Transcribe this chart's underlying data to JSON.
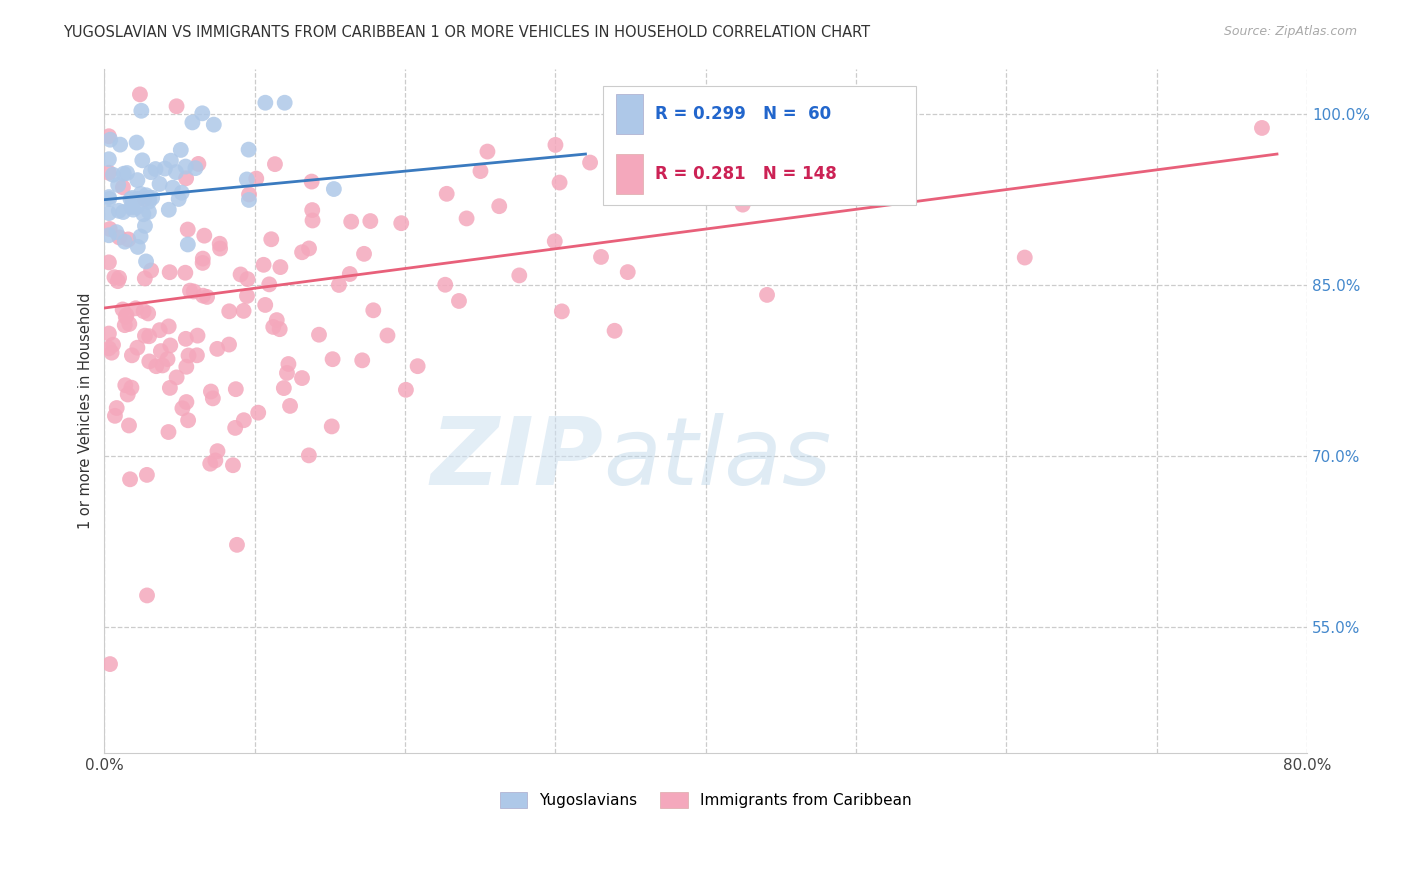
{
  "title": "YUGOSLAVIAN VS IMMIGRANTS FROM CARIBBEAN 1 OR MORE VEHICLES IN HOUSEHOLD CORRELATION CHART",
  "source": "Source: ZipAtlas.com",
  "ylabel": "1 or more Vehicles in Household",
  "xmin": 0.0,
  "xmax": 0.8,
  "ymin": 44.0,
  "ymax": 104.0,
  "blue_R": 0.299,
  "blue_N": 60,
  "pink_R": 0.281,
  "pink_N": 148,
  "blue_color": "#aec8e8",
  "pink_color": "#f4a8bc",
  "blue_line_color": "#3a7abf",
  "pink_line_color": "#e8607a",
  "legend_label_blue": "Yugoslavians",
  "legend_label_pink": "Immigrants from Caribbean",
  "background_color": "#ffffff",
  "ytick_values": [
    55.0,
    70.0,
    85.0,
    100.0
  ],
  "ytick_labels": [
    "55.0%",
    "70.0%",
    "85.0%",
    "100.0%"
  ],
  "watermark_zip": "ZIP",
  "watermark_atlas": "atlas"
}
